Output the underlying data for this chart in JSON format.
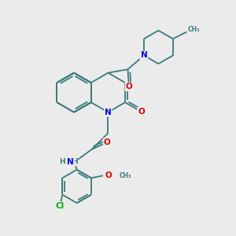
{
  "bg_color": "#ebebeb",
  "bond_color": "#3a7a7a",
  "atom_colors": {
    "N": "#0000ee",
    "O": "#dd0000",
    "Cl": "#00aa00",
    "C": "#3a7a7a",
    "H": "#3a7a7a"
  },
  "figsize": [
    3.0,
    3.0
  ],
  "dpi": 100
}
